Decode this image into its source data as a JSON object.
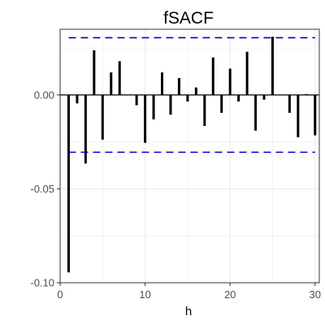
{
  "chart_data": {
    "type": "bar",
    "title": "fSACF",
    "xlabel": "h",
    "ylabel": "",
    "xlim": [
      0,
      30.5
    ],
    "ylim": [
      -0.1,
      0.035
    ],
    "x_ticks": [
      0,
      10,
      20,
      30
    ],
    "x_tick_labels": [
      "0",
      "10",
      "20",
      "30"
    ],
    "y_ticks": [
      -0.1,
      -0.05,
      0.0
    ],
    "y_tick_labels": [
      "-0.10",
      "-0.05",
      "0.00"
    ],
    "grid": true,
    "legend": "none",
    "lag": [
      1,
      2,
      3,
      4,
      5,
      6,
      7,
      8,
      9,
      10,
      11,
      12,
      13,
      14,
      15,
      16,
      17,
      18,
      19,
      20,
      21,
      22,
      23,
      24,
      25,
      26,
      27,
      28,
      29,
      30
    ],
    "values": [
      -0.0945,
      -0.0045,
      -0.0365,
      0.0238,
      -0.0238,
      0.012,
      0.018,
      0.0,
      -0.0055,
      -0.0255,
      -0.013,
      0.012,
      -0.0105,
      0.009,
      -0.0035,
      0.004,
      -0.0165,
      0.02,
      -0.0095,
      0.014,
      -0.0035,
      0.023,
      -0.019,
      -0.0025,
      0.031,
      0.0,
      -0.0095,
      -0.0225,
      0.0005,
      -0.0215
    ],
    "confidence_bound": 0.0305,
    "colors": {
      "bars": "#000000",
      "confidence": "#0000cc",
      "grid": "#ebebeb",
      "panel_border": "#333333"
    }
  }
}
